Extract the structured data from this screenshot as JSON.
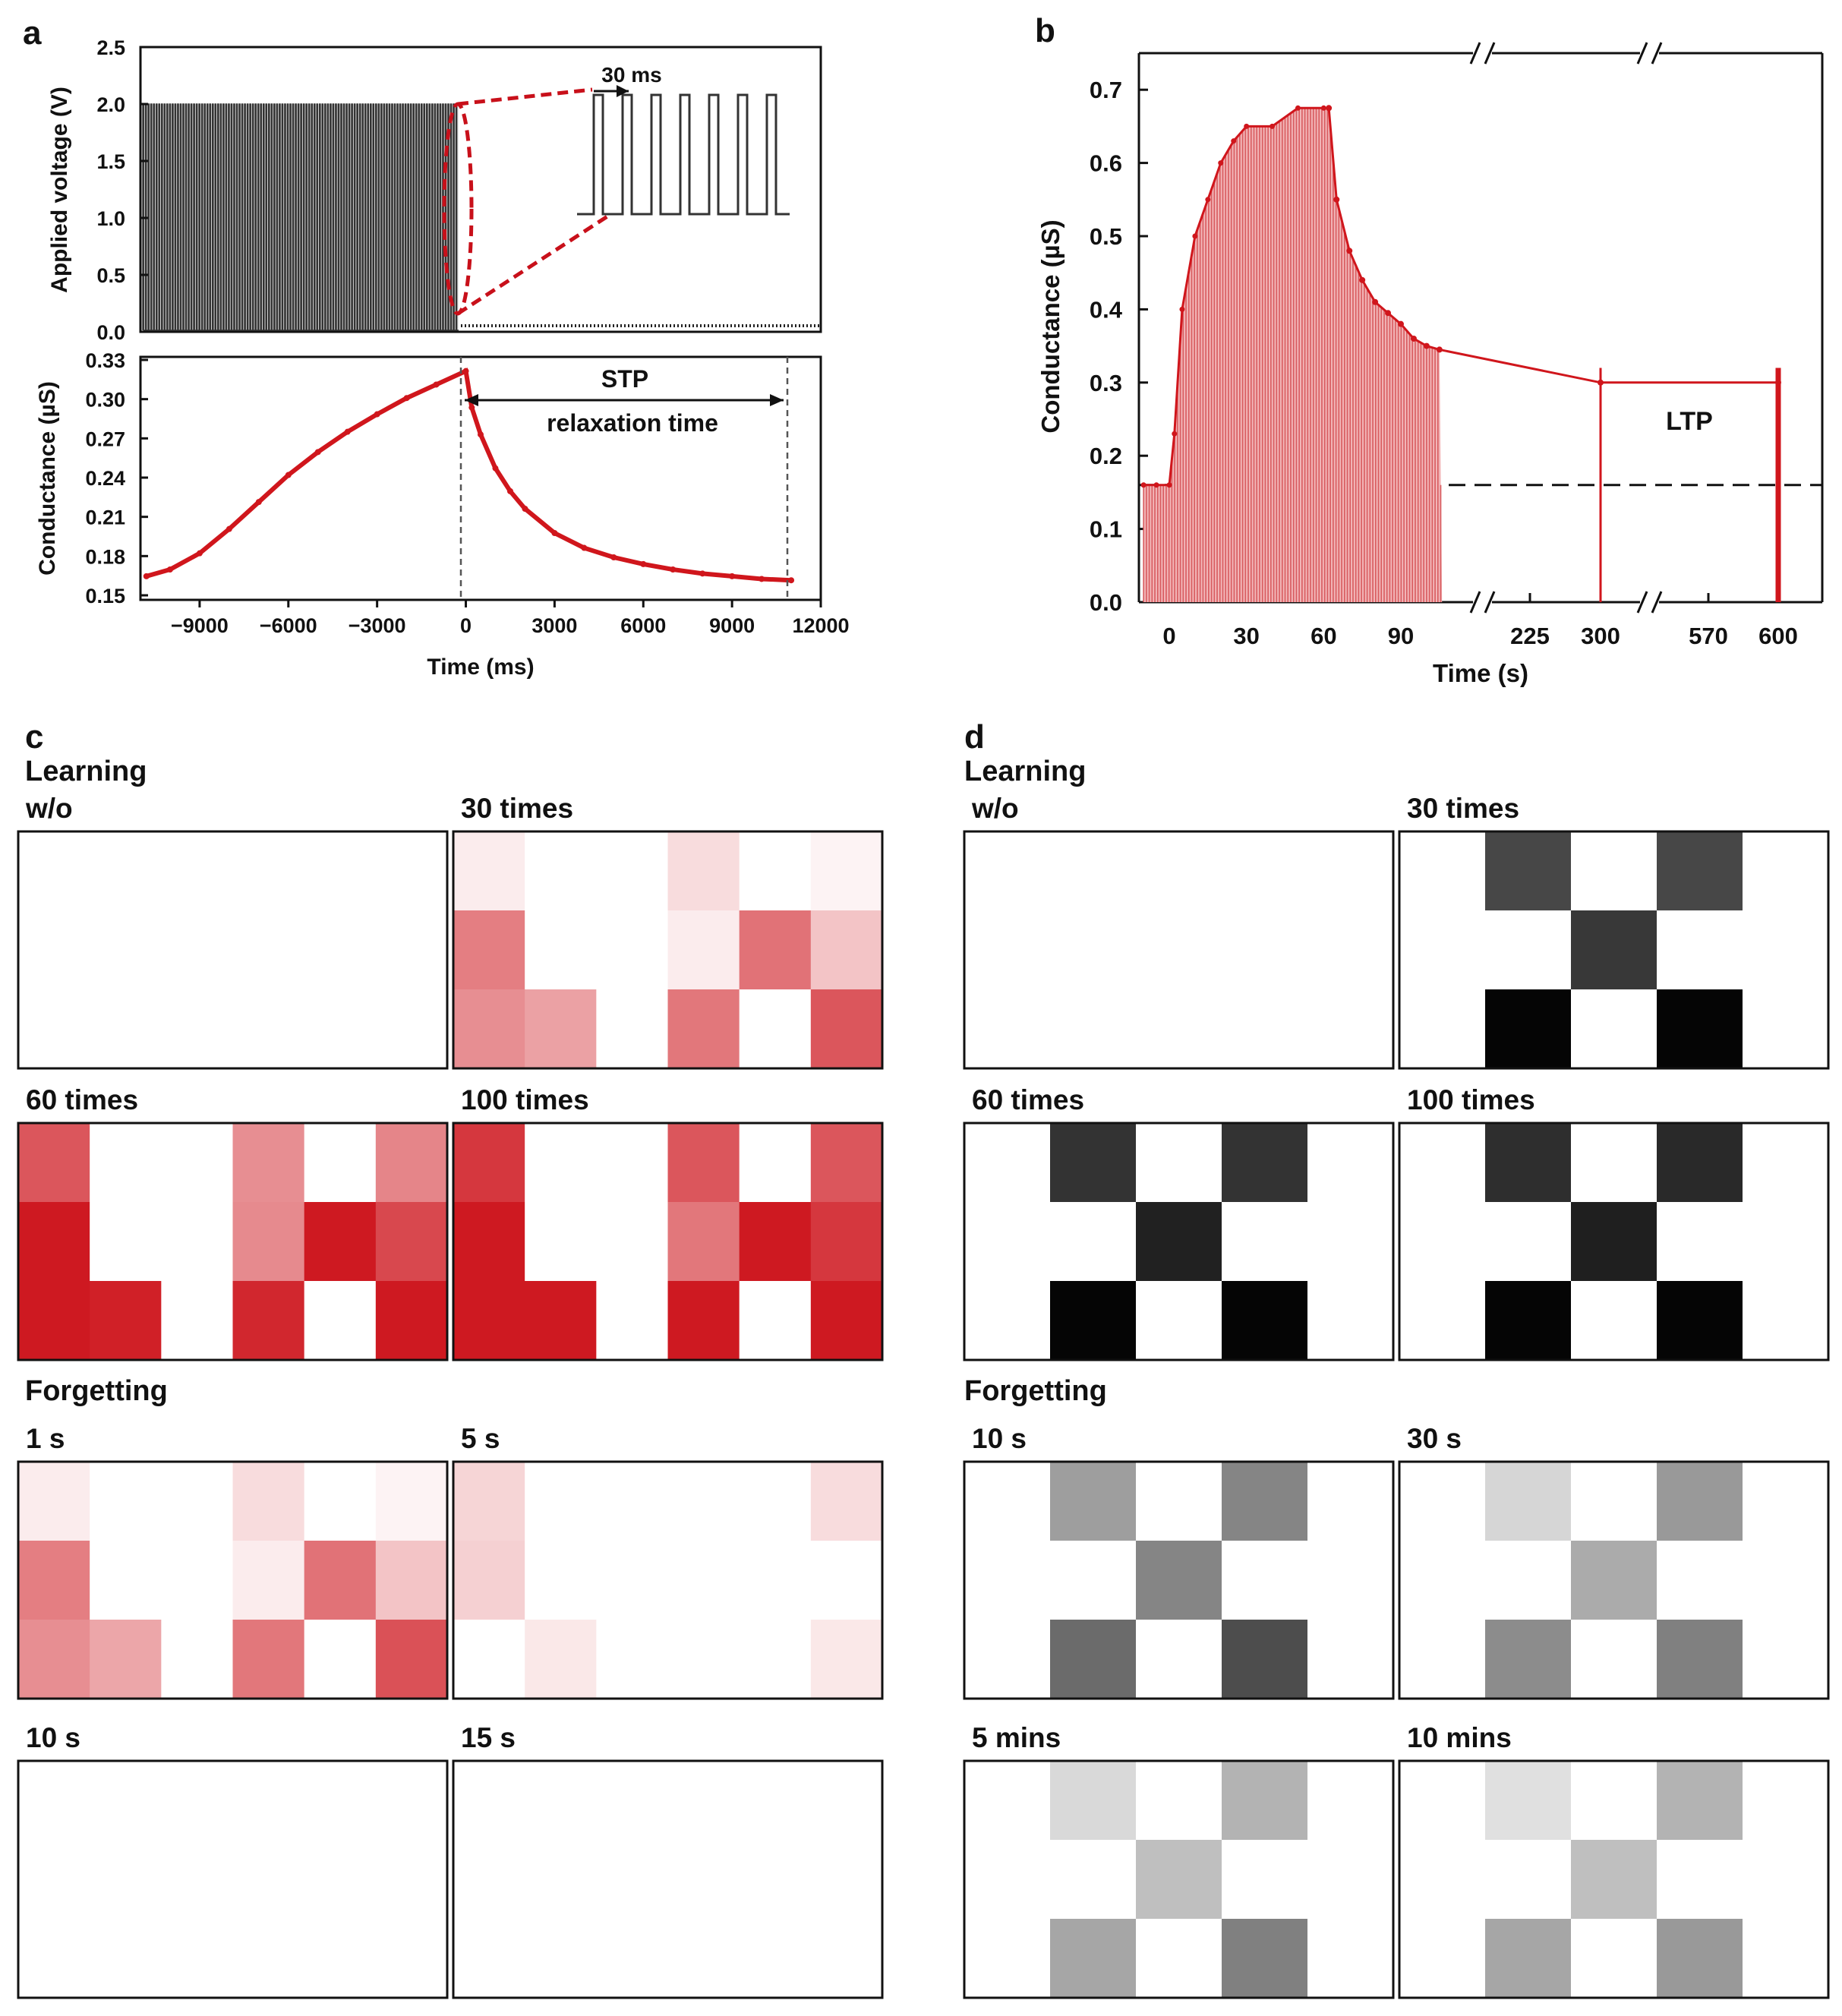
{
  "panels": {
    "a": {
      "label": "a",
      "top": {
        "ylabel": "Applied voltage (V)",
        "yticks": [
          "0.0",
          "0.5",
          "1.0",
          "1.5",
          "2.0",
          "2.5"
        ],
        "inset_label": "30 ms"
      },
      "bottom": {
        "ylabel": "Conductance (µS)",
        "yticks": [
          "0.15",
          "0.18",
          "0.21",
          "0.24",
          "0.27",
          "0.30",
          "0.33"
        ],
        "xticks": [
          "−9000",
          "−6000",
          "−3000",
          "0",
          "3000",
          "6000",
          "9000",
          "12000"
        ],
        "xlabel": "Time (ms)",
        "annot_stp": "STP",
        "annot_relax": "relaxation time"
      }
    },
    "b": {
      "label": "b",
      "ylabel": "Conductance (µS)",
      "yticks": [
        "0.0",
        "0.1",
        "0.2",
        "0.3",
        "0.4",
        "0.5",
        "0.6",
        "0.7"
      ],
      "xticks": [
        "0",
        "30",
        "60",
        "90",
        "225",
        "300",
        "570",
        "600"
      ],
      "xlabel": "Time (s)",
      "annot_ltp": "LTP"
    },
    "c": {
      "label": "c",
      "learning": "Learning",
      "forgetting": "Forgetting",
      "titles": [
        "w/o",
        "30 times",
        "60 times",
        "100 times",
        "1 s",
        "5 s",
        "10 s",
        "15 s"
      ]
    },
    "d": {
      "label": "d",
      "learning": "Learning",
      "forgetting": "Forgetting",
      "titles": [
        "w/o",
        "30 times",
        "60 times",
        "100 times",
        "10 s",
        "30 s",
        "5 mins",
        "10 mins"
      ]
    }
  },
  "colors": {
    "red": "#d0161c",
    "axis": "#111111"
  },
  "chart_data": [
    {
      "panel": "a-top",
      "type": "line",
      "title": "",
      "xlabel": "",
      "ylabel": "Applied voltage (V)",
      "ylim": [
        0,
        2.5
      ],
      "xlim": [
        -11000,
        12000
      ],
      "description_series": [
        {
          "name": "pulse train",
          "pulse_amplitude": 2.0,
          "pulse_interval_ms": 30,
          "start_ms": -11000,
          "end_ms": 0
        }
      ]
    },
    {
      "panel": "a-bottom",
      "type": "scatter",
      "xlabel": "Time (ms)",
      "ylabel": "Conductance (µS)",
      "xlim": [
        -11000,
        12000
      ],
      "ylim": [
        0.15,
        0.33
      ],
      "series": [
        {
          "name": "conductance",
          "x": [
            -10800,
            -10000,
            -9000,
            -8000,
            -7000,
            -6000,
            -5000,
            -4000,
            -3000,
            -2000,
            -1000,
            0,
            200,
            500,
            1000,
            1500,
            2000,
            3000,
            4000,
            5000,
            6000,
            7000,
            8000,
            9000,
            10000,
            11000
          ],
          "y": [
            0.163,
            0.168,
            0.18,
            0.198,
            0.218,
            0.238,
            0.255,
            0.27,
            0.283,
            0.295,
            0.305,
            0.315,
            0.288,
            0.268,
            0.243,
            0.226,
            0.213,
            0.195,
            0.184,
            0.177,
            0.172,
            0.168,
            0.165,
            0.163,
            0.161,
            0.16
          ]
        }
      ]
    },
    {
      "panel": "b",
      "type": "line",
      "xlabel": "Time (s)",
      "ylabel": "Conductance (µS)",
      "ylim": [
        0,
        0.75
      ],
      "baseline": 0.16,
      "series": [
        {
          "name": "peak conductance (learning)",
          "x": [
            -10,
            -5,
            0,
            2,
            5,
            10,
            15,
            20,
            25,
            30,
            40,
            50,
            60,
            62
          ],
          "y": [
            0.16,
            0.16,
            0.16,
            0.23,
            0.4,
            0.5,
            0.55,
            0.6,
            0.63,
            0.65,
            0.65,
            0.675,
            0.675,
            0.675
          ]
        },
        {
          "name": "decay",
          "x": [
            62,
            65,
            70,
            75,
            80,
            85,
            90,
            95,
            100,
            105,
            300,
            600
          ],
          "y": [
            0.675,
            0.55,
            0.48,
            0.44,
            0.41,
            0.395,
            0.38,
            0.36,
            0.35,
            0.345,
            0.3,
            0.3
          ]
        }
      ]
    },
    {
      "panel": "c",
      "type": "heatmap",
      "colormap": "white-to-red",
      "rows": 3,
      "cols": 6,
      "grids": [
        [
          [
            0,
            0,
            0,
            0,
            0,
            0
          ],
          [
            0,
            0,
            0,
            0,
            0,
            0
          ],
          [
            0,
            0,
            0,
            0,
            0,
            0
          ]
        ],
        [
          [
            0.08,
            0,
            0,
            0.15,
            0,
            0.05
          ],
          [
            0.55,
            0,
            0,
            0.08,
            0.6,
            0.25
          ],
          [
            0.48,
            0.4,
            0,
            0.58,
            0,
            0.72
          ]
        ],
        [
          [
            0.72,
            0,
            0,
            0.48,
            0,
            0.52
          ],
          [
            0.98,
            0,
            0,
            0.5,
            0.98,
            0.78
          ],
          [
            0.98,
            0.95,
            0,
            0.92,
            0,
            0.98
          ]
        ],
        [
          [
            0.85,
            0,
            0,
            0.72,
            0,
            0.72
          ],
          [
            0.98,
            0,
            0,
            0.58,
            0.98,
            0.85
          ],
          [
            0.98,
            0.98,
            0,
            0.98,
            0,
            0.98
          ]
        ],
        [
          [
            0.08,
            0,
            0,
            0.15,
            0,
            0.05
          ],
          [
            0.55,
            0,
            0,
            0.08,
            0.6,
            0.25
          ],
          [
            0.48,
            0.38,
            0,
            0.58,
            0,
            0.74
          ]
        ],
        [
          [
            0.18,
            0,
            0,
            0,
            0,
            0.15
          ],
          [
            0.2,
            0,
            0,
            0,
            0,
            0
          ],
          [
            0,
            0.1,
            0,
            0,
            0,
            0.1
          ]
        ],
        [
          [
            0,
            0,
            0,
            0,
            0,
            0
          ],
          [
            0,
            0,
            0,
            0,
            0,
            0
          ],
          [
            0,
            0,
            0,
            0,
            0,
            0
          ]
        ],
        [
          [
            0,
            0,
            0,
            0,
            0,
            0
          ],
          [
            0,
            0,
            0,
            0,
            0,
            0
          ],
          [
            0,
            0,
            0,
            0,
            0,
            0
          ]
        ]
      ]
    },
    {
      "panel": "d",
      "type": "heatmap",
      "colormap": "white-to-black",
      "rows": 3,
      "cols": 5,
      "grids": [
        [
          [
            0,
            0,
            0,
            0,
            0
          ],
          [
            0,
            0,
            0,
            0,
            0
          ],
          [
            0,
            0,
            0,
            0,
            0
          ]
        ],
        [
          [
            0,
            0.72,
            0,
            0.72,
            0
          ],
          [
            0,
            0,
            0.78,
            0,
            0
          ],
          [
            0,
            0.98,
            0,
            0.98,
            0
          ]
        ],
        [
          [
            0,
            0.8,
            0,
            0.8,
            0
          ],
          [
            0,
            0,
            0.87,
            0,
            0
          ],
          [
            0,
            0.98,
            0,
            0.98,
            0
          ]
        ],
        [
          [
            0,
            0.82,
            0,
            0.84,
            0
          ],
          [
            0,
            0,
            0.88,
            0,
            0
          ],
          [
            0,
            0.98,
            0,
            0.98,
            0
          ]
        ],
        [
          [
            0,
            0.38,
            0,
            0.48,
            0
          ],
          [
            0,
            0,
            0.48,
            0,
            0
          ],
          [
            0,
            0.58,
            0,
            0.7,
            0
          ]
        ],
        [
          [
            0,
            0.16,
            0,
            0.4,
            0
          ],
          [
            0,
            0,
            0.33,
            0,
            0
          ],
          [
            0,
            0.45,
            0,
            0.5,
            0
          ]
        ],
        [
          [
            0,
            0.15,
            0,
            0.3,
            0
          ],
          [
            0,
            0,
            0.25,
            0,
            0
          ],
          [
            0,
            0.35,
            0,
            0.5,
            0
          ]
        ],
        [
          [
            0,
            0.12,
            0,
            0.3,
            0
          ],
          [
            0,
            0,
            0.25,
            0,
            0
          ],
          [
            0,
            0.35,
            0,
            0.4,
            0
          ]
        ]
      ]
    }
  ]
}
